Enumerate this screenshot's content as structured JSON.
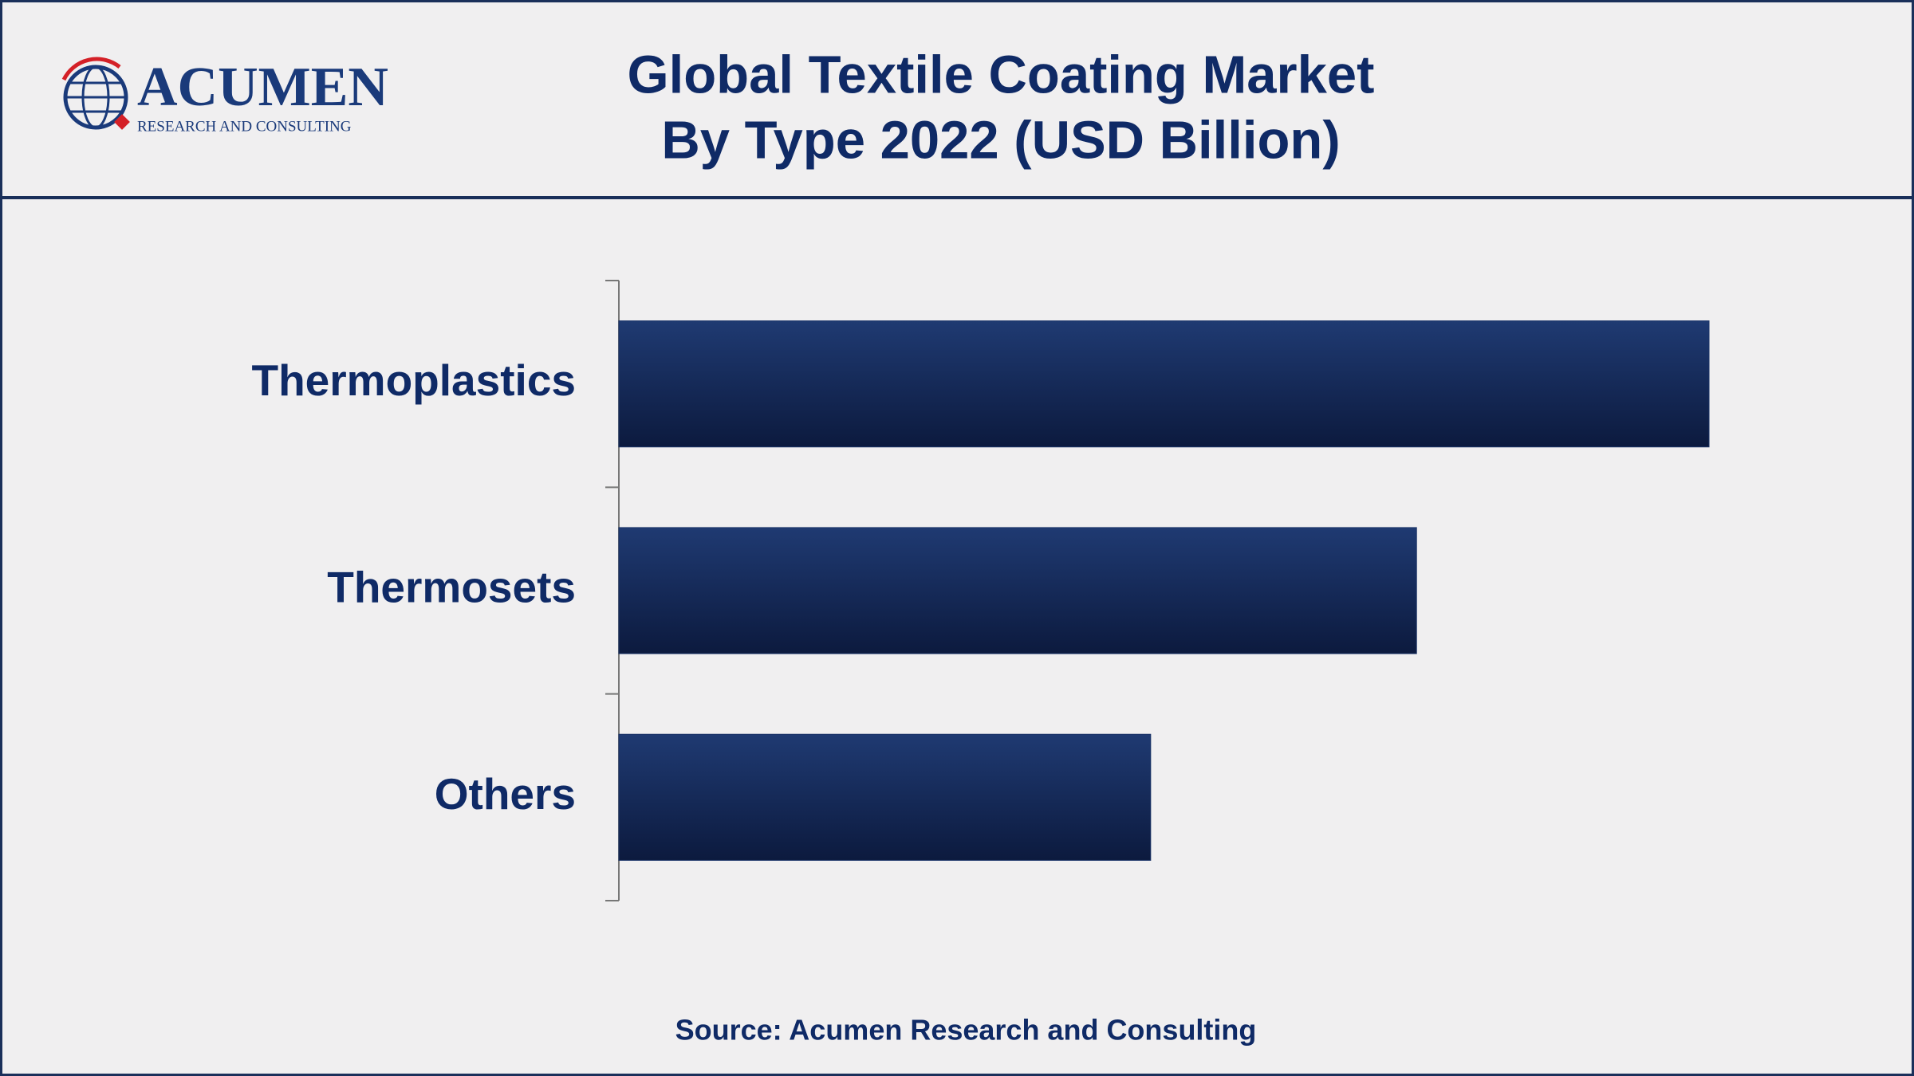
{
  "logo": {
    "name": "ACUMEN",
    "tagline": "RESEARCH AND CONSULTING"
  },
  "chart_data": {
    "type": "hbar",
    "title": "Global Textile Coating Market",
    "subtitle": "By Type 2022 (USD Billion)",
    "categories": [
      "Thermoplastics",
      "Thermosets",
      "Others"
    ],
    "values": [
      4.1,
      3.0,
      2.0
    ],
    "color": "#1b3468",
    "source": "Source: Acumen Research and Consulting"
  }
}
